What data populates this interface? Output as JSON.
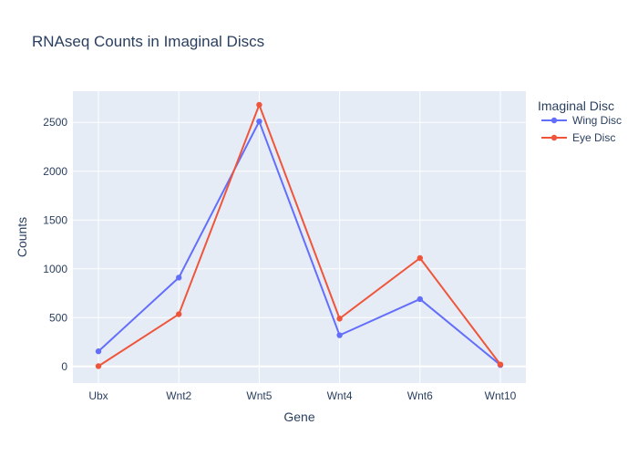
{
  "chart_data": {
    "type": "line",
    "title": "RNAseq Counts in Imaginal Discs",
    "xlabel": "Gene",
    "ylabel": "Counts",
    "categories": [
      "Ubx",
      "Wnt2",
      "Wnt5",
      "Wnt4",
      "Wnt6",
      "Wnt10"
    ],
    "ylim": [
      -170,
      2820
    ],
    "yticks": [
      0,
      500,
      1000,
      1500,
      2000,
      2500
    ],
    "grid": true,
    "legend": {
      "title": "Imaginal Disc",
      "placement": "top-right"
    },
    "series": [
      {
        "name": "Wing Disc",
        "color": "#636efa",
        "values": [
          155,
          910,
          2510,
          320,
          690,
          15
        ]
      },
      {
        "name": "Eye Disc",
        "color": "#ef553b",
        "values": [
          3,
          535,
          2680,
          490,
          1110,
          20
        ]
      }
    ],
    "background_color": "#e5ecf6",
    "grid_color": "#ffffff"
  }
}
